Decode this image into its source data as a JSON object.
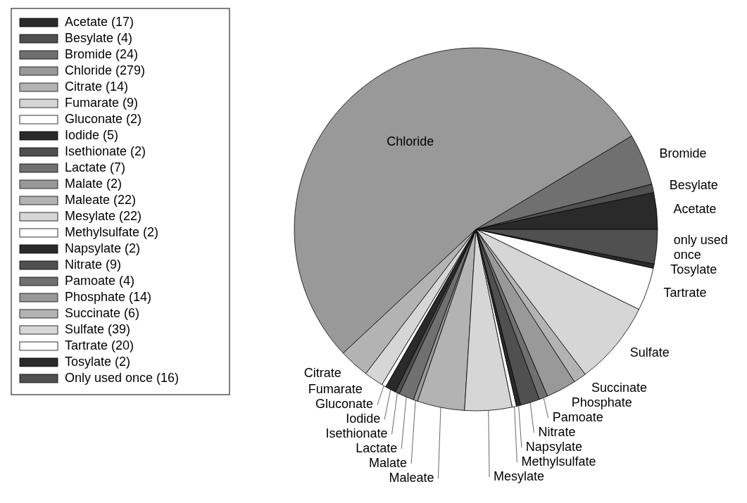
{
  "chart_data": {
    "type": "pie",
    "categories": [
      "Acetate (17)",
      "Besylate (4)",
      "Bromide (24)",
      "Chloride (279)",
      "Citrate (14)",
      "Fumarate (9)",
      "Gluconate (2)",
      "Iodide (5)",
      "Isethionate (2)",
      "Lactate (7)",
      "Malate (2)",
      "Maleate (22)",
      "Mesylate (22)",
      "Methylsulfate (2)",
      "Napsylate (2)",
      "Nitrate (9)",
      "Pamoate (4)",
      "Phosphate (14)",
      "Succinate (6)",
      "Sulfate (39)",
      "Tartrate (20)",
      "Tosylate (2)",
      "Only used once (16)"
    ],
    "values": [
      17,
      4,
      24,
      279,
      14,
      9,
      2,
      5,
      2,
      7,
      2,
      22,
      22,
      2,
      2,
      9,
      4,
      14,
      6,
      39,
      20,
      2,
      16
    ],
    "colors": [
      "#2a2a2a",
      "#505050",
      "#707070",
      "#999999",
      "#b3b3b3",
      "#d6d6d6",
      "#ffffff",
      "#2a2a2a",
      "#505050",
      "#707070",
      "#999999",
      "#b3b3b3",
      "#d6d6d6",
      "#ffffff",
      "#2a2a2a",
      "#505050",
      "#707070",
      "#999999",
      "#b3b3b3",
      "#d6d6d6",
      "#ffffff",
      "#2a2a2a",
      "#505050"
    ],
    "legend": "left",
    "annotations": [
      {
        "text": "Acetate",
        "x": "Acetate (17)"
      },
      {
        "text": "Besylate",
        "x": "Besylate (4)"
      },
      {
        "text": "Bromide",
        "x": "Bromide (24)"
      },
      {
        "text": "Chloride",
        "x": "Chloride (279)"
      },
      {
        "text": "Citrate",
        "x": "Citrate (14)"
      },
      {
        "text": "Fumarate",
        "x": "Fumarate (9)"
      },
      {
        "text": "Gluconate",
        "x": "Gluconate (2)"
      },
      {
        "text": "Iodide",
        "x": "Iodide (5)"
      },
      {
        "text": "Isethionate",
        "x": "Isethionate (2)"
      },
      {
        "text": "Lactate",
        "x": "Lactate (7)"
      },
      {
        "text": "Malate",
        "x": "Malate (2)"
      },
      {
        "text": "Maleate",
        "x": "Maleate (22)"
      },
      {
        "text": "Mesylate",
        "x": "Mesylate (22)"
      },
      {
        "text": "Methylsulfate",
        "x": "Methylsulfate (2)"
      },
      {
        "text": "Napsylate",
        "x": "Napsylate (2)"
      },
      {
        "text": "Nitrate",
        "x": "Nitrate (9)"
      },
      {
        "text": "Pamoate",
        "x": "Pamoate (4)"
      },
      {
        "text": "Phosphate",
        "x": "Phosphate (14)"
      },
      {
        "text": "Succinate",
        "x": "Succinate (6)"
      },
      {
        "text": "Sulfate",
        "x": "Sulfate (39)"
      },
      {
        "text": "Tartrate",
        "x": "Tartrate (20)"
      },
      {
        "text": "Tosylate",
        "x": "Tosylate (2)"
      },
      {
        "text": "only used once",
        "x": "Only used once (16)"
      }
    ]
  }
}
